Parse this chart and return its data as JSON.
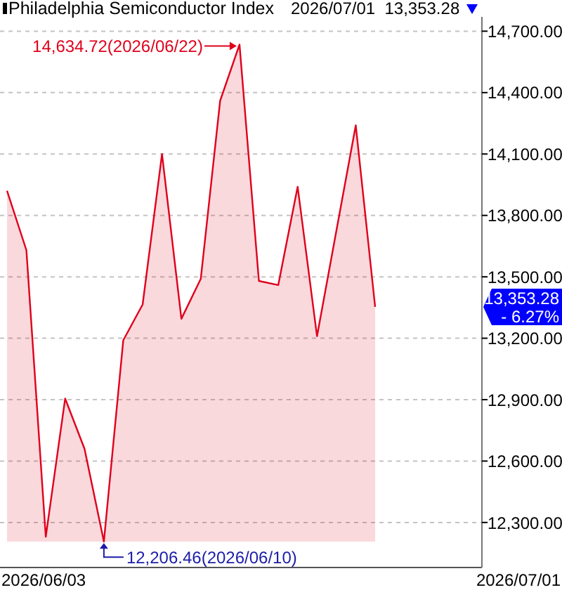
{
  "chart_data": {
    "type": "area",
    "title": "Philadelphia Semiconductor Index",
    "subtitle": "2026/07/01  13,353.28",
    "categories": [
      null,
      null,
      null,
      null,
      null,
      null,
      null,
      null,
      null,
      null,
      null,
      null,
      null,
      null,
      null,
      null,
      null,
      null,
      null,
      null
    ],
    "values": [
      13920,
      13630,
      12230,
      12905,
      12660,
      12206.46,
      13190,
      13365,
      14100,
      13295,
      13490,
      14360,
      14634.72,
      13480,
      13460,
      13940,
      13210,
      13725,
      14240,
      13353.28
    ],
    "color": "#e0001b",
    "ylim": [
      12080,
      14770
    ],
    "yticks": [
      {
        "value": 12300,
        "label": "12,300.00"
      },
      {
        "value": 12600,
        "label": "12,600.00"
      },
      {
        "value": 12900,
        "label": "12,900.00"
      },
      {
        "value": 13200,
        "label": "13,200.00"
      },
      {
        "value": 13500,
        "label": "13,500.00"
      },
      {
        "value": 13800,
        "label": "13,800.00"
      },
      {
        "value": 14100,
        "label": "14,100.00"
      },
      {
        "value": 14400,
        "label": "14,400.00"
      },
      {
        "value": 14700,
        "label": "14,700.00"
      }
    ],
    "grid": "y",
    "tick_labels": "y",
    "annotations": [
      "14,634.72(2026/06/22)",
      "12,206.46(2026/06/10)",
      "13,353.28\n- 6.27%",
      "2026/06/03",
      "2026/07/01"
    ]
  }
}
